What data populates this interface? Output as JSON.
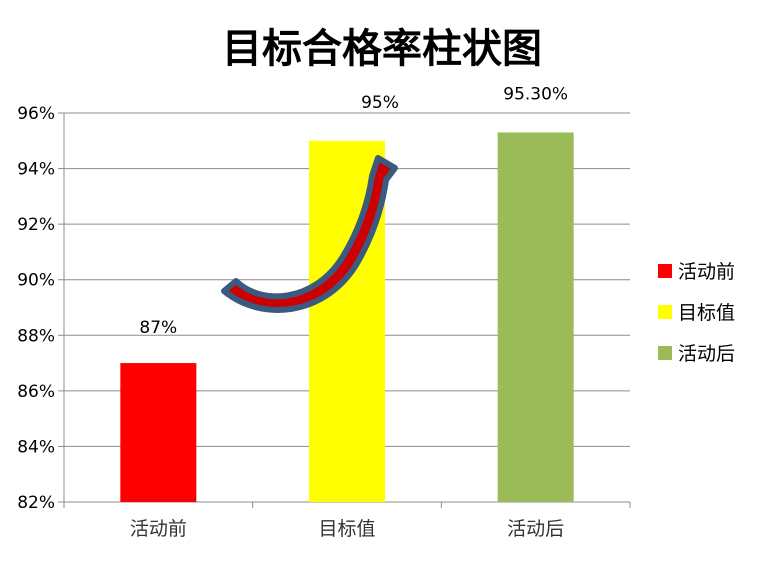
{
  "chart_data": {
    "type": "bar",
    "title": "目标合格率柱状图",
    "categories": [
      "活动前",
      "目标值",
      "活动后"
    ],
    "values": [
      87,
      95,
      95.3
    ],
    "data_labels": [
      "87%",
      "95%",
      "95.30%"
    ],
    "colors": [
      "#ff0000",
      "#ffff00",
      "#9bbb59"
    ],
    "ylim": [
      82,
      96
    ],
    "yticks": [
      82,
      84,
      86,
      88,
      90,
      92,
      94,
      96
    ],
    "ytick_labels": [
      "82%",
      "84%",
      "86%",
      "88%",
      "90%",
      "92%",
      "94%",
      "96%"
    ],
    "xlabel": "",
    "ylabel": "",
    "grid": true,
    "legend": {
      "position": "right",
      "entries": [
        {
          "label": "活动前",
          "color": "#ff0000"
        },
        {
          "label": "目标值",
          "color": "#ffff00"
        },
        {
          "label": "活动后",
          "color": "#9bbb59"
        }
      ]
    },
    "annotation": {
      "type": "curved-arrow",
      "from": "活动前",
      "to": "目标值",
      "fill": "#cc0000",
      "stroke": "#3b5a80"
    }
  }
}
